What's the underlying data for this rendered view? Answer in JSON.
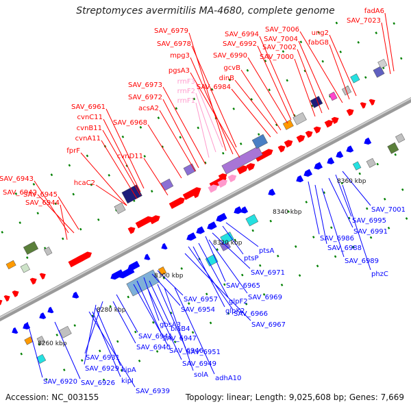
{
  "title": "Streptomyces avermitilis MA-4680, complete genome",
  "accession_label": "Accession: NC_003155",
  "topology_label": "Topology: linear; Length: 9,025,608 bp; Genes: 7,669",
  "colors": {
    "forward": "#ff0000",
    "reverse": "#0000ff",
    "rrna": "#ff99cc",
    "axis": "#999999",
    "tick": "#008000"
  },
  "scale_labels": [
    "8260 kbp",
    "8280 kbp",
    "8300 kbp",
    "8320 kbp",
    "8340 kbp",
    "8360 kbp"
  ],
  "forward_labels": [
    "fadA6",
    "SAV_7023",
    "ung2",
    "SAV_7006",
    "SAV_7004",
    "SAV_7002",
    "SAV_7000",
    "fabG8",
    "SAV_6994",
    "SAV_6992",
    "SAV_6990",
    "gcvB",
    "dinB",
    "SAV_6984",
    "SAV_6979",
    "SAV_6978",
    "mpg3",
    "pgsA3",
    "SAV_6973",
    "SAV_6972",
    "acsA2",
    "SAV_6968",
    "SAV_6961",
    "cvnC11",
    "cvnB11",
    "cvnA11",
    "fprF",
    "cvnD11",
    "hcaC2",
    "SAV_6943",
    "SAV_6942",
    "SAV_6945",
    "SAV_6944"
  ],
  "rrna_labels": [
    "rrnF3",
    "rrnF2",
    "rrnF1"
  ],
  "reverse_labels": [
    "SAV_7001",
    "SAV_6995",
    "SAV_6991",
    "SAV_6986",
    "SAV_6988",
    "SAV_6989",
    "phzC",
    "ptsA",
    "ptsP",
    "SAV_6971",
    "SAV_6965",
    "SAV_6969",
    "glpF2",
    "glpK2",
    "SAV_6966",
    "SAV_6967",
    "SAV_6957",
    "SAV_6954",
    "gbsA3",
    "blaB4",
    "SAV_6947",
    "SAV_6946",
    "SAV_6951",
    "SAV_6949",
    "solA",
    "adhA10",
    "SAV_6941",
    "SAV_6940",
    "SAV_6931",
    "SAV_6929",
    "kipA",
    "kipI",
    "SAV_6939",
    "SAV_6920",
    "SAV_6926"
  ]
}
